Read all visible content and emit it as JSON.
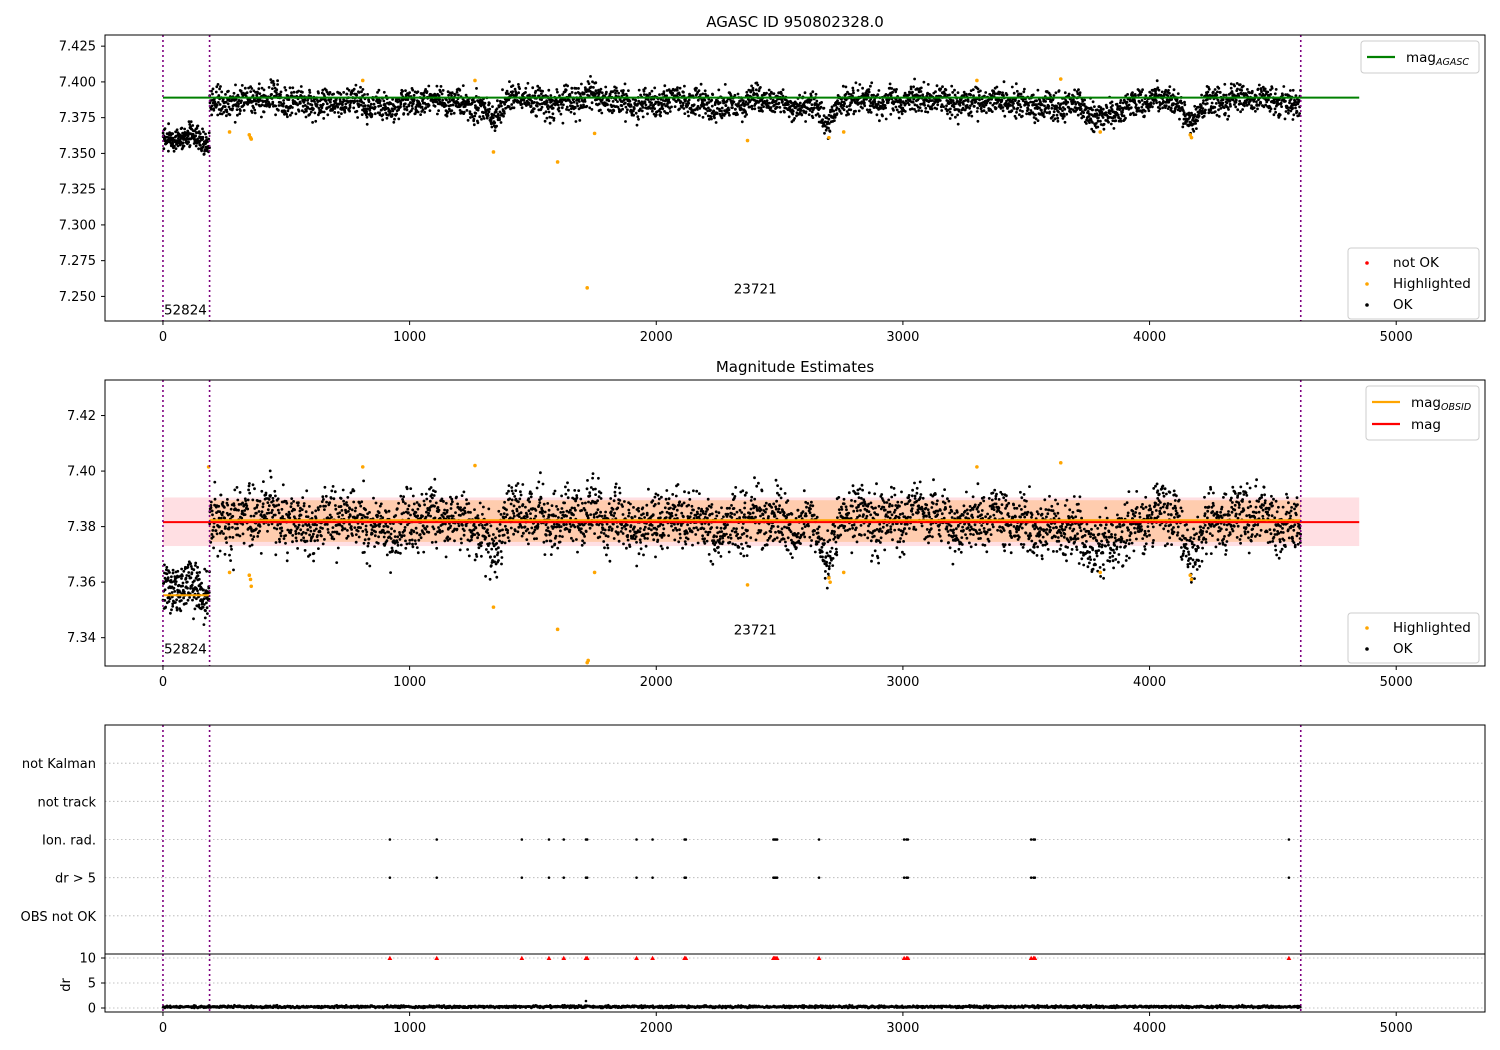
{
  "figure": {
    "background": "#ffffff"
  },
  "chart_data": [
    {
      "id": "top",
      "type": "scatter",
      "title": "AGASC ID 950802328.0",
      "xlim": [
        -235,
        5360
      ],
      "ylim": [
        7.2328,
        7.4328
      ],
      "xticks": [
        0,
        1000,
        2000,
        3000,
        4000,
        5000
      ],
      "yticks": [
        7.25,
        7.275,
        7.3,
        7.325,
        7.35,
        7.375,
        7.4,
        7.425
      ],
      "yticklabels": [
        "7.250",
        "7.275",
        "7.300",
        "7.325",
        "7.350",
        "7.375",
        "7.400",
        "7.425"
      ],
      "obs_boundaries": [
        0,
        189,
        4613
      ],
      "obsid_labels": [
        {
          "text": "52824",
          "x": 0,
          "y": 7.2375
        },
        {
          "text": "23721",
          "x": 2310,
          "y": 7.252
        }
      ],
      "hlines": [
        {
          "name": "mag_AGASC",
          "y": 7.389,
          "x0": 0,
          "x1": 4850,
          "color": "#008000"
        }
      ],
      "series": [
        {
          "name": "not OK",
          "color": "#ff0000",
          "points": []
        },
        {
          "name": "Highlighted",
          "color": "#ffa500",
          "points": [
            [
              270,
              7.365
            ],
            [
              350,
              7.363
            ],
            [
              355,
              7.361
            ],
            [
              358,
              7.36
            ],
            [
              810,
              7.401
            ],
            [
              1265,
              7.401
            ],
            [
              1340,
              7.351
            ],
            [
              1600,
              7.344
            ],
            [
              1720,
              7.256
            ],
            [
              1750,
              7.364
            ],
            [
              2370,
              7.359
            ],
            [
              2700,
              7.361
            ],
            [
              2760,
              7.365
            ],
            [
              3300,
              7.401
            ],
            [
              3640,
              7.402
            ],
            [
              3800,
              7.365
            ],
            [
              4165,
              7.363
            ],
            [
              4170,
              7.361
            ]
          ]
        },
        {
          "name": "OK",
          "color": "#000000",
          "segments": [
            {
              "x0": 0,
              "x1": 189,
              "mean": 7.358,
              "noise": 0.004,
              "n": 220
            },
            {
              "x0": 189,
              "x1": 4613,
              "mean": 7.386,
              "noise": 0.0048,
              "n": 3800
            }
          ],
          "dips": [
            {
              "x": 1340,
              "w": 40,
              "d": 0.012
            },
            {
              "x": 2700,
              "w": 40,
              "d": 0.015
            },
            {
              "x": 3790,
              "w": 80,
              "d": 0.012
            },
            {
              "x": 4160,
              "w": 40,
              "d": 0.014
            }
          ]
        }
      ],
      "legend_lines": [
        "mag_AGASC"
      ],
      "legend_points": [
        "not OK",
        "Highlighted",
        "OK"
      ]
    },
    {
      "id": "middle",
      "type": "scatter",
      "title": "Magnitude Estimates",
      "xlim": [
        -235,
        5360
      ],
      "ylim": [
        7.3298,
        7.4328
      ],
      "xticks": [
        0,
        1000,
        2000,
        3000,
        4000,
        5000
      ],
      "yticks": [
        7.34,
        7.36,
        7.38,
        7.4,
        7.42
      ],
      "yticklabels": [
        "7.34",
        "7.36",
        "7.38",
        "7.40",
        "7.42"
      ],
      "obs_boundaries": [
        0,
        189,
        4613
      ],
      "obsid_labels": [
        {
          "text": "52824",
          "x": 0,
          "y": 7.3343
        },
        {
          "text": "23721",
          "x": 2310,
          "y": 7.3412
        }
      ],
      "bands": [
        {
          "y0": 7.373,
          "y1": 7.3905,
          "x0": 0,
          "x1": 4850,
          "color": "#ffc0c8",
          "opacity": 0.5
        },
        {
          "y0": 7.3745,
          "y1": 7.3895,
          "x0": 189,
          "x1": 4613,
          "color": "#ffb060",
          "opacity": 0.4
        }
      ],
      "hlines": [
        {
          "name": "mag_OBSID",
          "y": 7.3553,
          "x0": 0,
          "x1": 189,
          "color": "#ffa500"
        },
        {
          "name": "mag_OBSID",
          "y": 7.3823,
          "x0": 189,
          "x1": 4613,
          "color": "#ffa500"
        },
        {
          "name": "mag",
          "y": 7.3816,
          "x0": 0,
          "x1": 4850,
          "color": "#ff0000"
        }
      ],
      "series": [
        {
          "name": "Highlighted",
          "color": "#ffa500",
          "points": [
            [
              185,
              7.4015
            ],
            [
              270,
              7.3635
            ],
            [
              350,
              7.3625
            ],
            [
              355,
              7.361
            ],
            [
              358,
              7.3585
            ],
            [
              810,
              7.4015
            ],
            [
              1265,
              7.402
            ],
            [
              1340,
              7.351
            ],
            [
              1600,
              7.343
            ],
            [
              1720,
              7.331
            ],
            [
              1724,
              7.3318
            ],
            [
              1750,
              7.3635
            ],
            [
              2370,
              7.359
            ],
            [
              2700,
              7.3615
            ],
            [
              2705,
              7.36
            ],
            [
              2760,
              7.3635
            ],
            [
              3300,
              7.4015
            ],
            [
              3640,
              7.403
            ],
            [
              3800,
              7.3635
            ],
            [
              4165,
              7.3625
            ],
            [
              4170,
              7.361
            ]
          ]
        },
        {
          "name": "OK",
          "color": "#000000",
          "segments": [
            {
              "x0": 0,
              "x1": 189,
              "mean": 7.3555,
              "noise": 0.0045,
              "n": 220
            },
            {
              "x0": 189,
              "x1": 4613,
              "mean": 7.3822,
              "noise": 0.0052,
              "n": 3800
            }
          ],
          "dips": [
            {
              "x": 1340,
              "w": 40,
              "d": 0.012
            },
            {
              "x": 2700,
              "w": 40,
              "d": 0.015
            },
            {
              "x": 3790,
              "w": 80,
              "d": 0.012
            },
            {
              "x": 4160,
              "w": 40,
              "d": 0.014
            }
          ]
        }
      ],
      "legend_lines": [
        "mag_OBSID",
        "mag"
      ],
      "legend_points": [
        "Highlighted",
        "OK"
      ]
    },
    {
      "id": "flags",
      "type": "scatter",
      "xlim": [
        -235,
        5360
      ],
      "ylim": [
        -0.5,
        5.5
      ],
      "obs_boundaries": [
        0,
        189,
        4613
      ],
      "rows": [
        "OBS not OK",
        "dr > 5",
        "Ion. rad.",
        "not track",
        "not Kalman"
      ],
      "flag_x": [
        920,
        1110,
        1455,
        1565,
        1625,
        1715,
        1720,
        1920,
        1985,
        2115,
        2120,
        2475,
        2480,
        2485,
        2490,
        2660,
        3005,
        3015,
        3020,
        3520,
        3530,
        3535,
        4565
      ],
      "flag_rows": [
        "dr > 5",
        "Ion. rad."
      ]
    },
    {
      "id": "dr",
      "type": "scatter",
      "ylabel": "dr",
      "xlim": [
        -235,
        5360
      ],
      "ylim": [
        -0.8,
        10.8
      ],
      "xticks": [
        0,
        1000,
        2000,
        3000,
        4000,
        5000
      ],
      "yticks": [
        0,
        5,
        10
      ],
      "obs_boundaries": [
        0,
        189,
        4613
      ],
      "hline": 10,
      "baseline": {
        "x0": 0,
        "x1": 4613,
        "mean": 0.25,
        "noise": 0.12,
        "n": 2200
      },
      "outlier": [
        1715,
        1.4
      ],
      "capped_color": "#ff0000",
      "capped_x": [
        920,
        1110,
        1455,
        1565,
        1625,
        1715,
        1720,
        1920,
        1985,
        2115,
        2120,
        2475,
        2480,
        2485,
        2490,
        2660,
        3005,
        3015,
        3020,
        3520,
        3530,
        3535,
        4565
      ]
    }
  ]
}
